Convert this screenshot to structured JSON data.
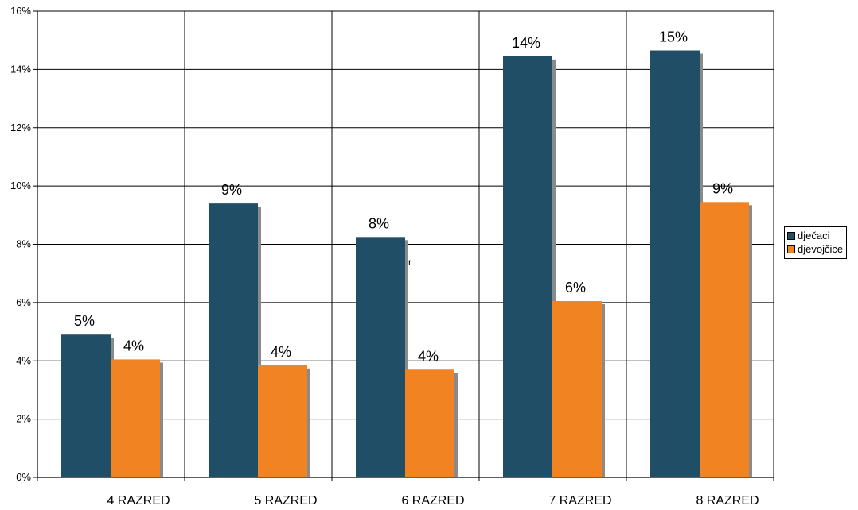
{
  "chart_data": {
    "type": "bar",
    "title": "",
    "xlabel": "",
    "ylabel": "",
    "categories": [
      "4 RAZRED",
      "5 RAZRED",
      "6 RAZRED",
      "7 RAZRED",
      "8 RAZRED"
    ],
    "series": [
      {
        "name": "dječaci",
        "color": "#1F4E66",
        "values": [
          4.9,
          9.4,
          8.25,
          14.45,
          14.65
        ],
        "labels": [
          "5%",
          "9%",
          "8%",
          "14%",
          "15%"
        ]
      },
      {
        "name": "djevojčice",
        "color": "#F28322",
        "values": [
          4.05,
          3.85,
          3.7,
          6.05,
          9.45
        ],
        "labels": [
          "4%",
          "4%",
          "4%",
          "6%",
          "9%"
        ]
      }
    ],
    "ylim": [
      0,
      16
    ],
    "yticks": [
      "0%",
      "2%",
      "4%",
      "6%",
      "8%",
      "10%",
      "12%",
      "14%",
      "16%"
    ],
    "grid": true,
    "legend_position": "right",
    "annotation": "r"
  }
}
